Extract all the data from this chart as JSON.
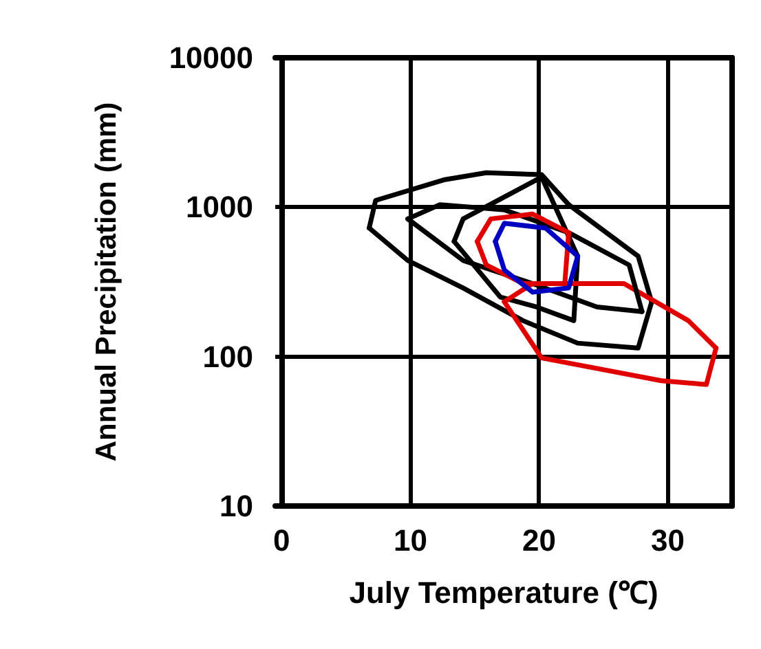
{
  "chart_data": {
    "type": "line",
    "xlabel": "July Temperature (℃)",
    "ylabel": "Annual Precipitation (mm)",
    "xlim": [
      -0.5,
      35
    ],
    "ylim": [
      10,
      10000
    ],
    "xticks": [
      0,
      10,
      20,
      30
    ],
    "yticks": [
      10,
      100,
      1000,
      10000
    ],
    "log": "y",
    "grid": true,
    "marker": "none",
    "line_style": "solid",
    "series": [
      {
        "color": "#000000",
        "x": [
          6.8,
          7.3,
          12.7,
          15.9,
          20.2,
          22.3,
          27.7,
          28.75
        ],
        "values": [
          725,
          1110,
          1530,
          1700,
          1650,
          1040,
          470,
          232
        ]
      },
      {
        "color": "#000000",
        "x": [
          6.8,
          9.8,
          14.1,
          18.75,
          23,
          27.7,
          28.75
        ],
        "values": [
          725,
          440,
          288,
          174,
          123,
          114,
          232
        ]
      },
      {
        "color": "#000000",
        "x": [
          13.4,
          14.1,
          20.2,
          23
        ],
        "values": [
          590,
          835,
          1590,
          470
        ]
      },
      {
        "color": "#000000",
        "x": [
          13.4,
          17,
          19.8,
          22.7,
          23
        ],
        "values": [
          590,
          250,
          215,
          174,
          470
        ]
      },
      {
        "color": "#e00000",
        "x": [
          17.3,
          19.5,
          26.6,
          31.6,
          33.75
        ],
        "values": [
          233,
          308,
          308,
          174,
          114
        ]
      },
      {
        "color": "#e00000",
        "x": [
          17.3,
          20.2,
          29.5,
          33,
          33.75
        ],
        "values": [
          233,
          98,
          69,
          65,
          114
        ]
      },
      {
        "color": "#000000",
        "x": [
          9.8,
          12.3,
          17.3,
          22.3,
          27,
          28
        ],
        "values": [
          835,
          1040,
          960,
          675,
          410,
          200
        ]
      },
      {
        "color": "#000000",
        "x": [
          9.8,
          14.1,
          19.5,
          24.5,
          28
        ],
        "values": [
          835,
          440,
          308,
          215,
          200
        ]
      },
      {
        "color": "#e00000",
        "x": [
          15.2,
          16.25,
          19.5,
          22.3
        ],
        "values": [
          590,
          835,
          900,
          675
        ]
      },
      {
        "color": "#e00000",
        "x": [
          15.2,
          15.9,
          18.75,
          22,
          22.3
        ],
        "values": [
          590,
          410,
          308,
          308,
          675
        ]
      },
      {
        "color": "#0000c0",
        "x": [
          16.6,
          17.3,
          20.5,
          23
        ],
        "values": [
          590,
          780,
          725,
          470
        ]
      },
      {
        "color": "#0000c0",
        "x": [
          16.6,
          17.3,
          19.5,
          22.3,
          23
        ],
        "values": [
          590,
          380,
          270,
          288,
          470
        ]
      }
    ]
  }
}
